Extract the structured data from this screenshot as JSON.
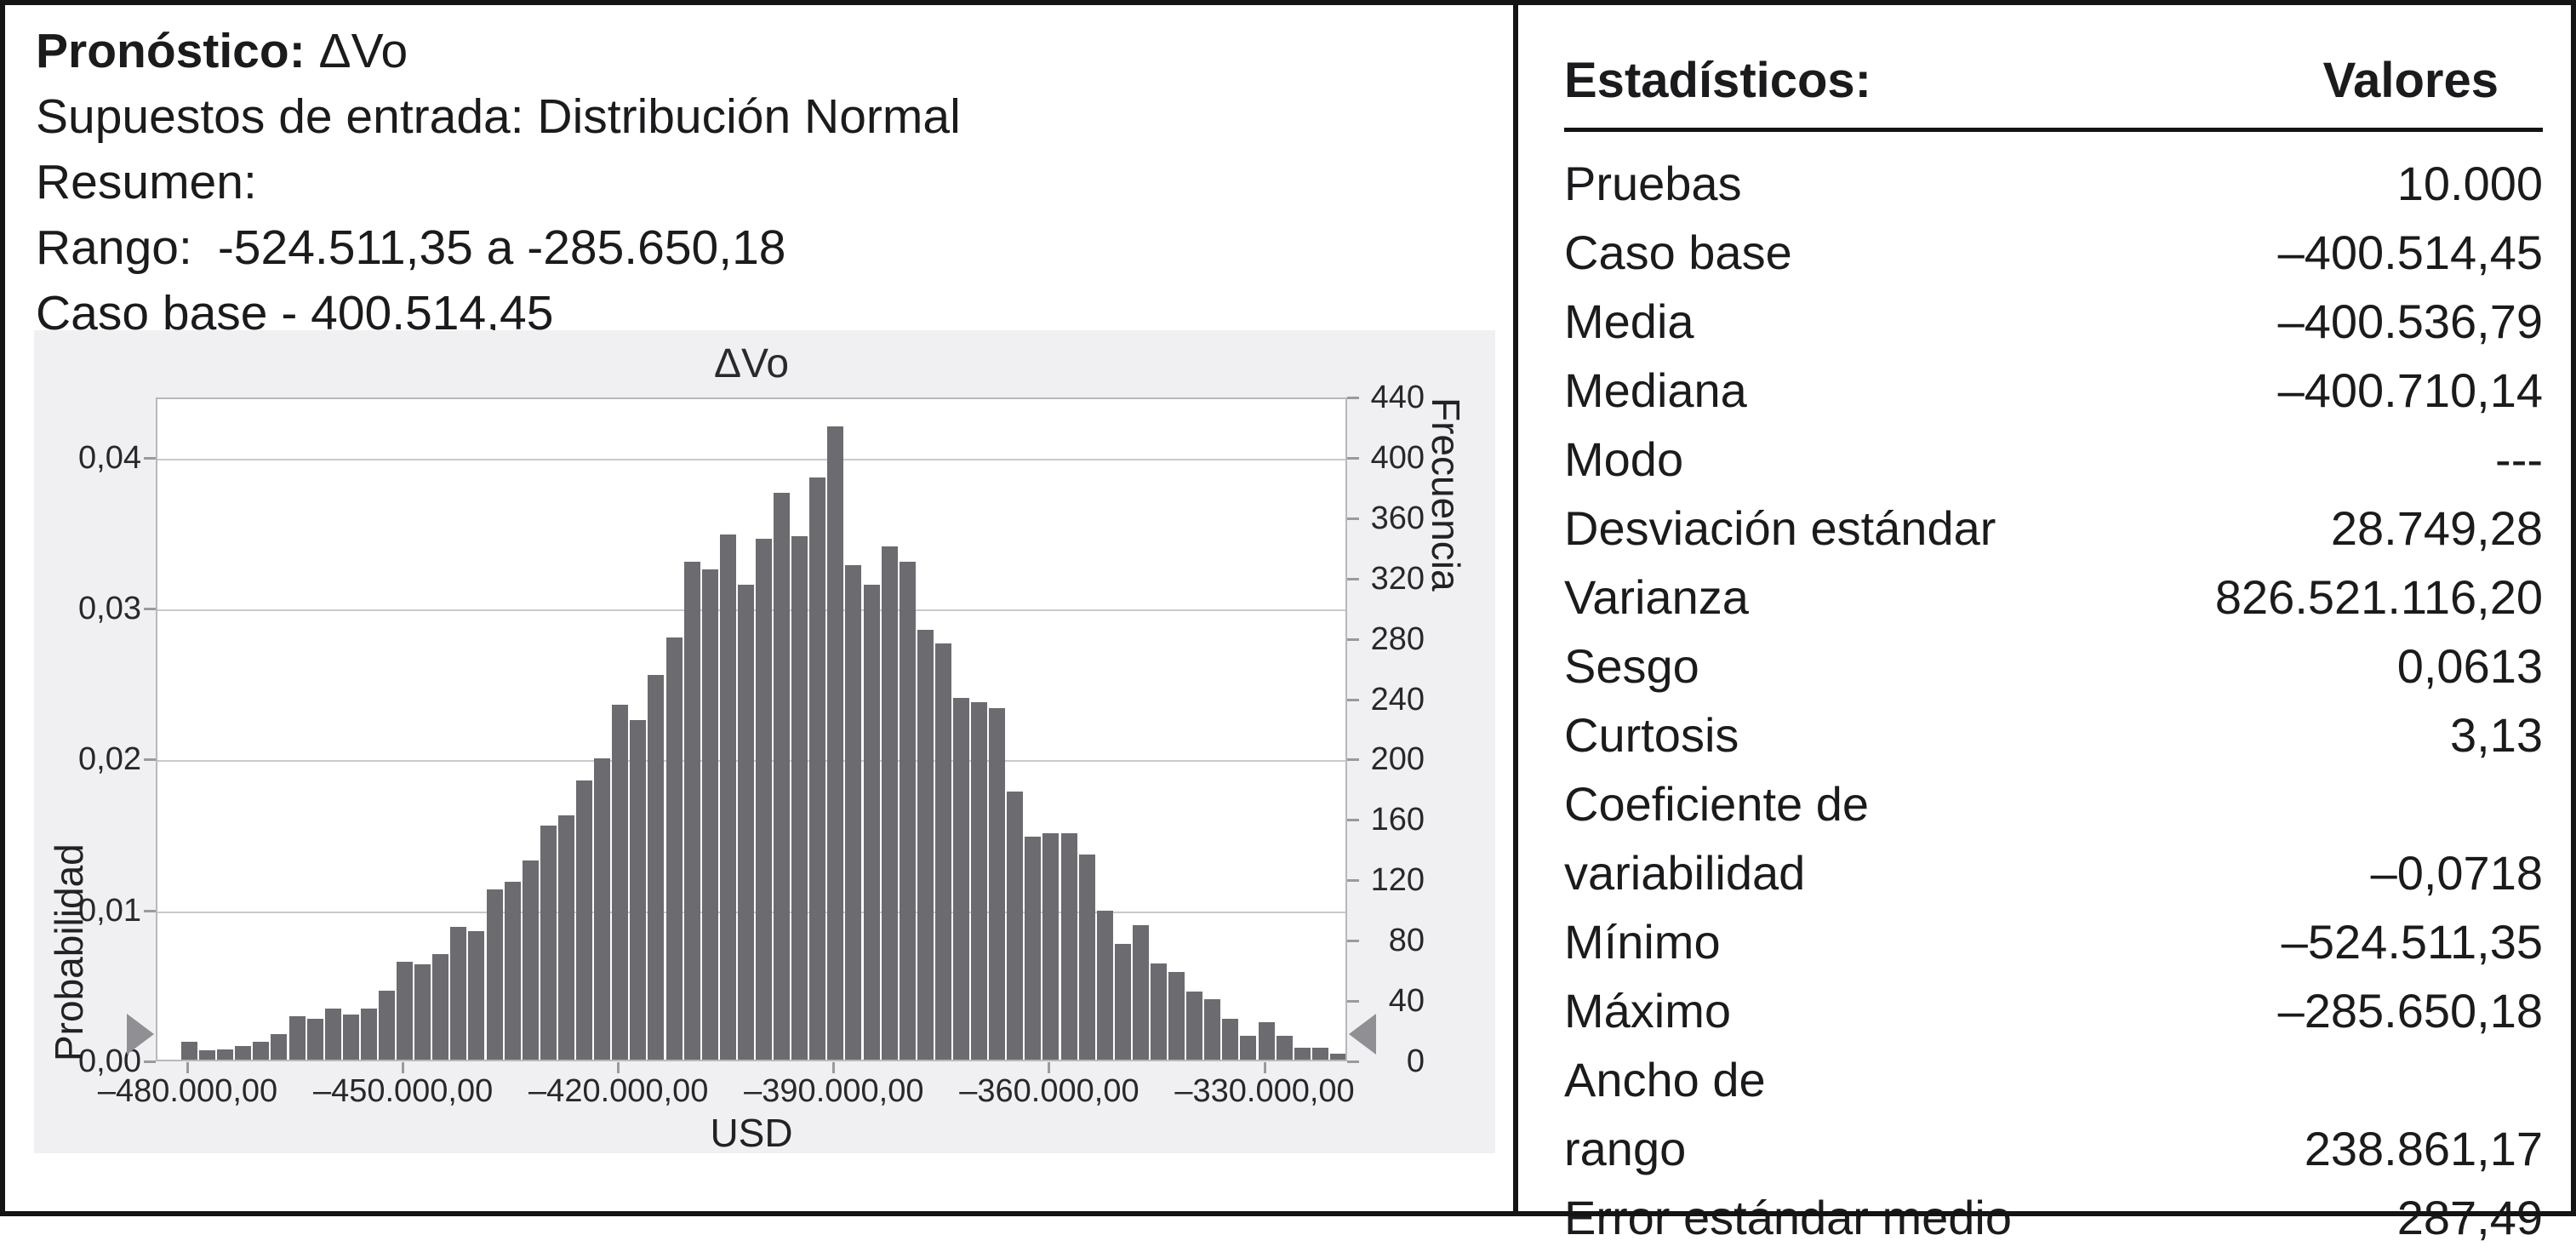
{
  "header": {
    "forecast_label": "Pronóstico:",
    "forecast_value": " ΔVo",
    "assumptions_line": "Supuestos de entrada: Distribución Normal",
    "summary_line": "Resumen:",
    "range_label": "Rango:",
    "range_value": "-524.511,35 a -285.650,18",
    "base_case_line": "Caso base - 400.514,45"
  },
  "chart_data": {
    "type": "bar",
    "title": "ΔVo",
    "xlabel": "USD",
    "ylabel_left": "Probabilidad",
    "ylabel_right": "Frecuencia",
    "trials": 10000,
    "x_tick_labels": [
      "–480.000,00",
      "–450.000,00",
      "–420.000,00",
      "–390.000,00",
      "–360.000,00",
      "–330.000,00"
    ],
    "x_tick_values": [
      -480000,
      -450000,
      -420000,
      -390000,
      -360000,
      -330000
    ],
    "left_tick_labels": [
      "0,00",
      "0,01",
      "0,02",
      "0,03",
      "0,04"
    ],
    "left_tick_values": [
      0,
      0.01,
      0.02,
      0.03,
      0.04
    ],
    "right_tick_labels": [
      "0",
      "40",
      "80",
      "120",
      "160",
      "200",
      "240",
      "280",
      "320",
      "360",
      "400",
      "440"
    ],
    "right_tick_values": [
      0,
      40,
      80,
      120,
      160,
      200,
      240,
      280,
      320,
      360,
      400,
      440
    ],
    "xlim": [
      -484445,
      -318509
    ],
    "ylim_probability": [
      0,
      0.044
    ],
    "ylim_frequency": [
      0,
      440
    ],
    "grid": "horizontal",
    "bin_start": -481250,
    "bin_width": 2500,
    "frequencies": [
      12,
      6,
      7,
      9,
      12,
      17,
      29,
      27,
      34,
      30,
      34,
      46,
      65,
      63,
      70,
      88,
      85,
      113,
      118,
      132,
      155,
      162,
      185,
      200,
      235,
      225,
      255,
      280,
      330,
      325,
      348,
      315,
      345,
      376,
      347,
      386,
      420,
      328,
      315,
      340,
      330,
      285,
      276,
      240,
      237,
      233,
      178,
      148,
      150,
      150,
      136,
      99,
      77,
      89,
      64,
      58,
      45,
      40,
      27,
      16,
      25,
      16,
      8,
      8,
      4
    ],
    "panel_bg": "#f0f0f2",
    "plot_bg": "#ffffff",
    "plot_border": "#b8b8bc",
    "bar_color": "#6b6b70",
    "gridline_color": "#c9c9cd",
    "slider_color": "#8f8f94"
  },
  "stats": {
    "header_label": "Estadísticos:",
    "header_value": "Valores",
    "rows": [
      {
        "label": "Pruebas",
        "value": "10.000"
      },
      {
        "label": "Caso base",
        "value": "–400.514,45"
      },
      {
        "label": "Media",
        "value": "–400.536,79"
      },
      {
        "label": "Mediana",
        "value": "–400.710,14"
      },
      {
        "label": "Modo",
        "value": "---"
      },
      {
        "label": "Desviación estándar",
        "value": "28.749,28"
      },
      {
        "label": "Varianza",
        "value": "826.521.116,20"
      },
      {
        "label": "Sesgo",
        "value": "0,0613"
      },
      {
        "label": "Curtosis",
        "value": "3,13"
      },
      {
        "label": "Coeficiente de",
        "label2": "variabilidad",
        "value": "–0,0718"
      },
      {
        "label": "Mínimo",
        "value": "–524.511,35"
      },
      {
        "label": "Máximo",
        "value": "–285.650,18"
      },
      {
        "label": "Ancho de",
        "label2": "rango",
        "value": "238.861,17"
      },
      {
        "label": "Error estándar medio",
        "value": "287,49"
      }
    ]
  }
}
